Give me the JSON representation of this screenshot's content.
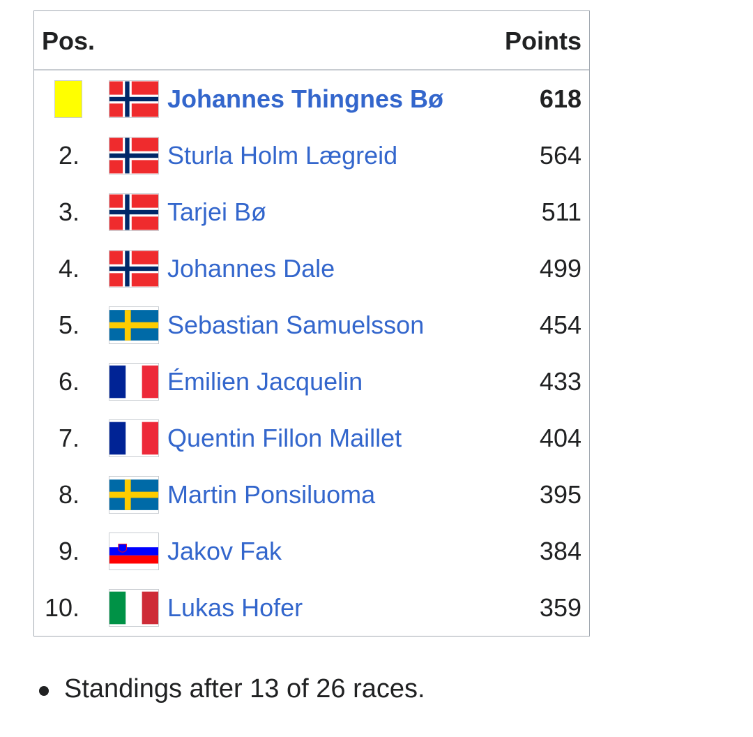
{
  "table": {
    "header": {
      "pos": "Pos.",
      "points": "Points"
    },
    "rows": [
      {
        "name": "Johannes Thingnes Bø",
        "points": 618
      },
      {
        "pos": "2.",
        "name": "Sturla Holm Lægreid",
        "points": 564
      },
      {
        "pos": "3.",
        "name": "Tarjei Bø",
        "points": 511
      },
      {
        "pos": "4.",
        "name": "Johannes Dale",
        "points": 499
      },
      {
        "pos": "5.",
        "name": "Sebastian Samuelsson",
        "points": 454
      },
      {
        "pos": "6.",
        "name": "Émilien Jacquelin",
        "points": 433
      },
      {
        "pos": "7.",
        "name": "Quentin Fillon Maillet",
        "points": 404
      },
      {
        "pos": "8.",
        "name": "Martin Ponsiluoma",
        "points": 395
      },
      {
        "pos": "9.",
        "name": "Jakov Fak",
        "points": 384
      },
      {
        "pos": "10.",
        "name": "Lukas Hofer",
        "points": 359
      }
    ]
  },
  "footnote": "Standings after 13 of 26 races."
}
